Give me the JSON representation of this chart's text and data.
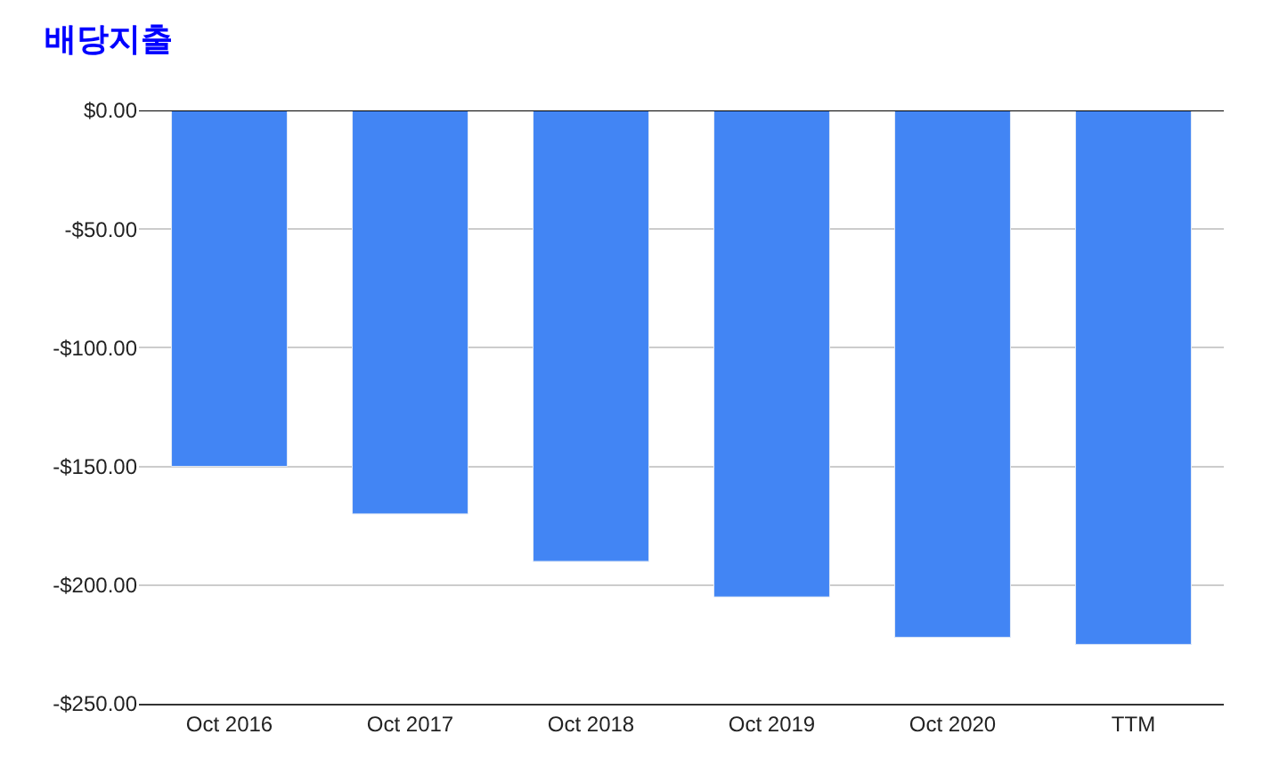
{
  "chart_data": {
    "type": "bar",
    "title": "배당지출",
    "categories": [
      "Oct 2016",
      "Oct 2017",
      "Oct 2018",
      "Oct 2019",
      "Oct 2020",
      "TTM"
    ],
    "values": [
      -150,
      -170,
      -190,
      -205,
      -222,
      -225
    ],
    "color": "#4285f4",
    "ylim": [
      -250,
      0
    ],
    "yticks": [
      {
        "value": 0,
        "label": "$0.00"
      },
      {
        "value": -50,
        "label": "-$50.00"
      },
      {
        "value": -100,
        "label": "-$100.00"
      },
      {
        "value": -150,
        "label": "-$150.00"
      },
      {
        "value": -200,
        "label": "-$200.00"
      },
      {
        "value": -250,
        "label": "-$250.00"
      }
    ],
    "grid": "y"
  }
}
